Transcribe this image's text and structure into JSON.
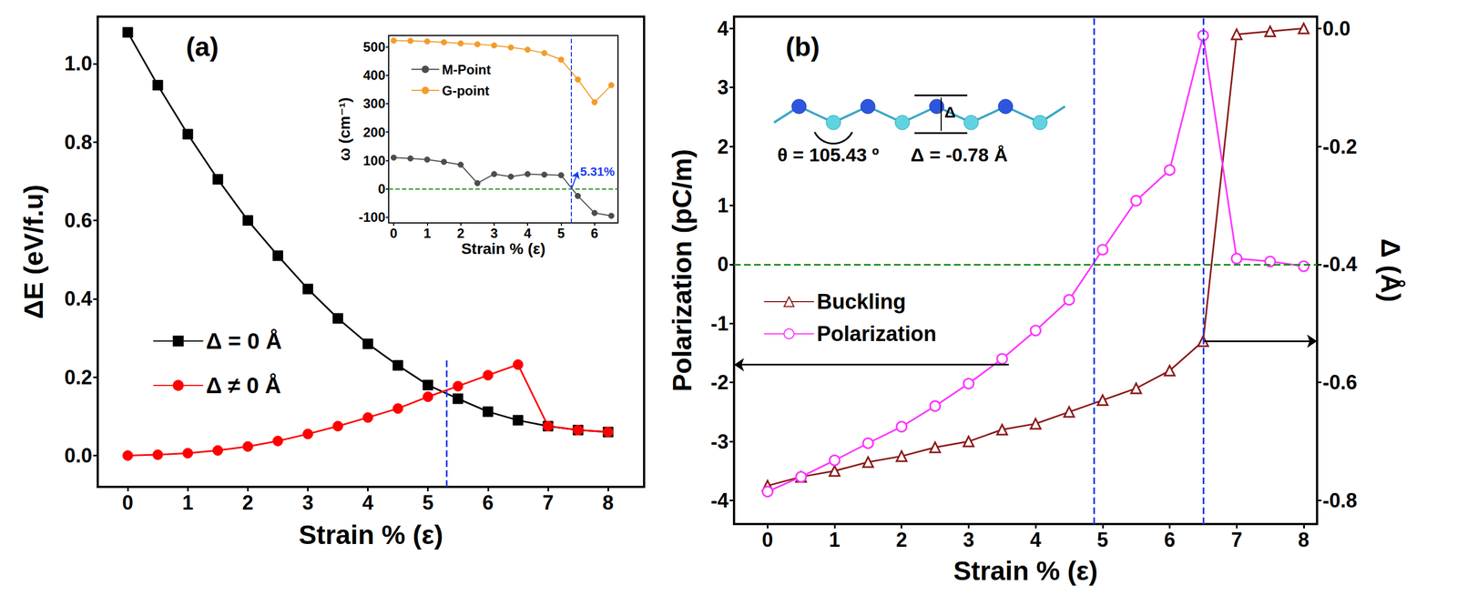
{
  "chart_data": [
    {
      "type": "line",
      "title": "(a)",
      "x_label": "Strain % (ε)",
      "y_label": "ΔE (eV/f.u)",
      "x": [
        0,
        0.5,
        1,
        1.5,
        2,
        2.5,
        3,
        3.5,
        4,
        4.5,
        5,
        5.5,
        6,
        6.5,
        7,
        7.5,
        8
      ],
      "xlim": [
        -0.5,
        8.6
      ],
      "xticks": [
        0,
        1,
        2,
        3,
        4,
        5,
        6,
        7,
        8
      ],
      "ylim": [
        -0.08,
        1.12
      ],
      "yticks": [
        {
          "value": 0,
          "label": "0.0"
        },
        0.2,
        0.4,
        0.6,
        0.8,
        {
          "value": 1,
          "label": "1.0"
        }
      ],
      "grid": false,
      "legend": "left",
      "series": [
        {
          "name": "Δ = 0 Å",
          "color": "#000000",
          "marker": "square",
          "values": [
            1.08,
            0.945,
            0.82,
            0.705,
            0.6,
            0.51,
            0.425,
            0.35,
            0.285,
            0.23,
            0.18,
            0.145,
            0.112,
            0.09,
            0.075,
            0.065,
            0.06
          ]
        },
        {
          "name": "Δ ≠ 0 Å",
          "color": "#ff0000",
          "marker": "circle",
          "values": [
            0,
            0.002,
            0.006,
            0.013,
            0.023,
            0.037,
            0.055,
            0.075,
            0.097,
            0.12,
            0.15,
            0.177,
            0.205,
            0.232,
            0.075,
            0.065,
            0.06
          ]
        }
      ],
      "vlines": [
        {
          "x": 5.31,
          "y_to": 0.25,
          "color": "#1a3cf0",
          "line_style": "dashed"
        }
      ]
    },
    {
      "type": "line",
      "x_label": "Strain % (ε)",
      "y_label": "ω (cm⁻¹)",
      "x": [
        0,
        0.5,
        1,
        1.5,
        2,
        2.5,
        3,
        3.5,
        4,
        4.5,
        5,
        5.5,
        6,
        6.5
      ],
      "xlim": [
        -0.15,
        6.7
      ],
      "xticks": [
        0,
        1,
        2,
        3,
        4,
        5,
        6
      ],
      "ylim": [
        -120,
        540
      ],
      "yticks": [
        -100,
        0,
        100,
        200,
        300,
        400,
        500
      ],
      "grid": false,
      "legend": "upper left",
      "series": [
        {
          "name": "M-Point",
          "color": "#4d4d4d",
          "marker": "circle",
          "values": [
            110,
            107,
            103,
            95,
            85,
            20,
            52,
            43,
            52,
            50,
            48,
            -25,
            -85,
            -95
          ]
        },
        {
          "name": "G-point",
          "color": "#f39c2a",
          "marker": "circle",
          "values": [
            522,
            521,
            519,
            516,
            512,
            509,
            505,
            498,
            490,
            478,
            455,
            385,
            305,
            365
          ]
        }
      ],
      "hlines": [
        {
          "y": 0,
          "color": "#1f8a1f",
          "line_style": "dashed"
        }
      ],
      "vlines": [
        {
          "x": 5.31,
          "color": "#1a3cf0",
          "line_style": "dashed"
        }
      ],
      "annotations": [
        {
          "text": "5.31%",
          "x": 5.5,
          "y": 60,
          "arrow_from": [
            5.31,
            0
          ],
          "color": "#1a3cf0"
        }
      ]
    },
    {
      "type": "line",
      "title": "(b)",
      "x_label": "Strain % (ε)",
      "y_label": "Polarization (pC/m)",
      "y2_label": "Δ (Å)",
      "x": [
        0,
        0.5,
        1,
        1.5,
        2,
        2.5,
        3,
        3.5,
        4,
        4.5,
        5,
        5.5,
        6,
        6.5,
        7,
        7.5,
        8
      ],
      "xlim": [
        -0.5,
        8.2
      ],
      "xticks": [
        0,
        1,
        2,
        3,
        4,
        5,
        6,
        7,
        8
      ],
      "ylim": [
        -4.4,
        4.2
      ],
      "yticks": [
        -4,
        -3,
        -2,
        -1,
        0,
        1,
        2,
        3,
        4
      ],
      "y2lim": [
        -0.84,
        0.02
      ],
      "y2ticks": [
        {
          "value": 0,
          "label": "0.0"
        },
        -0.2,
        -0.4,
        -0.6,
        -0.8
      ],
      "grid": false,
      "legend": "left",
      "series": [
        {
          "name": "Buckling",
          "color": "#8b1a1a",
          "marker": "triangle",
          "axis": "y2",
          "values": [
            -0.775,
            -0.76,
            -0.75,
            -0.735,
            -0.725,
            -0.71,
            -0.7,
            -0.68,
            -0.67,
            -0.65,
            -0.63,
            -0.61,
            -0.58,
            -0.53,
            -0.01,
            -0.005,
            0
          ]
        },
        {
          "name": "Polarization",
          "color": "#ff33ff",
          "marker": "circle",
          "values": [
            -3.85,
            -3.6,
            -3.32,
            -3.03,
            -2.75,
            -2.4,
            -2.02,
            -1.6,
            -1.12,
            -0.6,
            0.25,
            1.08,
            1.6,
            3.88,
            0.1,
            0.05,
            -0.03
          ]
        }
      ],
      "hlines": [
        {
          "y": 0,
          "color": "#1f8a1f",
          "line_style": "dashed"
        }
      ],
      "vlines": [
        {
          "x": 4.87,
          "color": "#1a3cf0",
          "line_style": "dashed"
        },
        {
          "x": 6.5,
          "color": "#1a3cf0",
          "line_style": "dashed"
        }
      ],
      "arrows": [
        {
          "x": 3.6,
          "y": -1.7,
          "direction": "left",
          "color": "#000000"
        },
        {
          "x": 6.5,
          "y": -0.53,
          "axis": "y2",
          "direction": "right",
          "color": "#000000"
        }
      ],
      "structure_labels": {
        "angle": "θ = 105.43 º",
        "buckling": "Δ = -0.78 Å",
        "height": "Δ"
      }
    }
  ]
}
